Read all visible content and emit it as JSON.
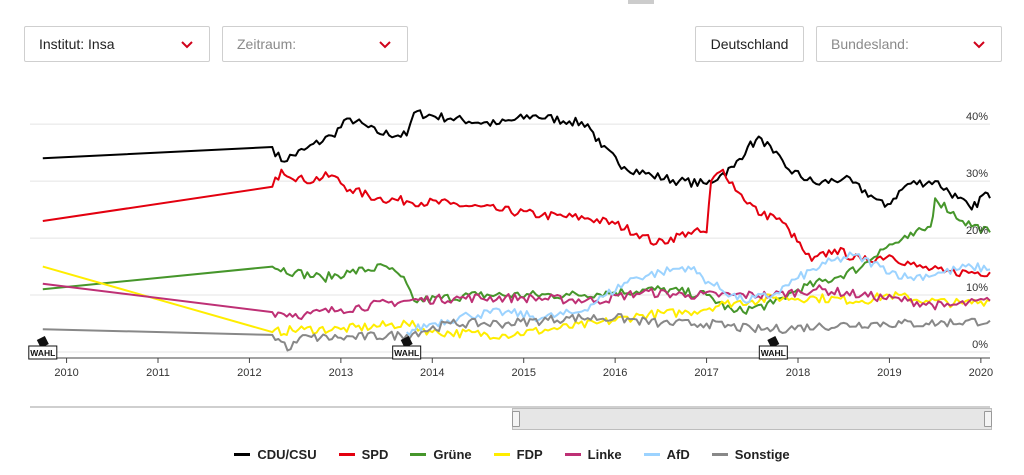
{
  "filters": {
    "institute_label": "Institut: Insa",
    "period_placeholder": "Zeitraum:",
    "country_button": "Deutschland",
    "state_placeholder": "Bundesland:"
  },
  "chart_data": {
    "type": "line",
    "x_axis": {
      "type": "year",
      "range": [
        2009.6,
        2020.1
      ],
      "ticks": [
        "2010",
        "2011",
        "2012",
        "2013",
        "2014",
        "2015",
        "2016",
        "2017",
        "2018",
        "2019",
        "2020"
      ]
    },
    "y_axis": {
      "range": [
        0,
        46
      ],
      "ticks": [
        "0%",
        "10%",
        "20%",
        "30%",
        "40%"
      ],
      "gridlines": true,
      "position": "right"
    },
    "election_markers": [
      {
        "label": "WAHL",
        "x": 2009.74
      },
      {
        "label": "WAHL",
        "x": 2013.72
      },
      {
        "label": "WAHL",
        "x": 2017.73
      }
    ],
    "series": [
      {
        "name": "CDU/CSU",
        "color": "#000000",
        "points": [
          [
            2009.74,
            34
          ],
          [
            2012.25,
            36
          ],
          [
            2012.35,
            33.5
          ],
          [
            2012.6,
            35.5
          ],
          [
            2012.9,
            38
          ],
          [
            2013.1,
            41
          ],
          [
            2013.4,
            38.5
          ],
          [
            2013.72,
            38
          ],
          [
            2013.8,
            42
          ],
          [
            2014.2,
            41
          ],
          [
            2014.7,
            40
          ],
          [
            2015.1,
            41.5
          ],
          [
            2015.5,
            40.5
          ],
          [
            2015.7,
            40
          ],
          [
            2015.85,
            36
          ],
          [
            2016.1,
            32.5
          ],
          [
            2016.4,
            31
          ],
          [
            2016.7,
            30
          ],
          [
            2017.0,
            29.5
          ],
          [
            2017.15,
            31
          ],
          [
            2017.3,
            32.5
          ],
          [
            2017.45,
            36
          ],
          [
            2017.6,
            37.5
          ],
          [
            2017.73,
            35
          ],
          [
            2017.9,
            32
          ],
          [
            2018.2,
            29.5
          ],
          [
            2018.5,
            30.5
          ],
          [
            2018.8,
            27.5
          ],
          [
            2018.95,
            25.5
          ],
          [
            2019.2,
            29.5
          ],
          [
            2019.5,
            30
          ],
          [
            2019.75,
            27
          ],
          [
            2019.9,
            25
          ],
          [
            2020.05,
            28
          ],
          [
            2020.1,
            27
          ]
        ]
      },
      {
        "name": "SPD",
        "color": "#e3000f",
        "points": [
          [
            2009.74,
            23
          ],
          [
            2012.25,
            29
          ],
          [
            2012.35,
            32
          ],
          [
            2012.6,
            30
          ],
          [
            2012.9,
            31
          ],
          [
            2013.1,
            28.5
          ],
          [
            2013.4,
            27
          ],
          [
            2013.72,
            26.5
          ],
          [
            2014.2,
            26
          ],
          [
            2014.7,
            25
          ],
          [
            2015.2,
            24
          ],
          [
            2015.7,
            23.5
          ],
          [
            2016.0,
            22.5
          ],
          [
            2016.3,
            20.5
          ],
          [
            2016.45,
            19
          ],
          [
            2016.8,
            21
          ],
          [
            2017.0,
            21
          ],
          [
            2017.05,
            30
          ],
          [
            2017.18,
            32
          ],
          [
            2017.35,
            28
          ],
          [
            2017.6,
            24
          ],
          [
            2017.73,
            24
          ],
          [
            2017.9,
            21.5
          ],
          [
            2018.05,
            18
          ],
          [
            2018.15,
            16
          ],
          [
            2018.4,
            18
          ],
          [
            2018.7,
            16
          ],
          [
            2019.0,
            17
          ],
          [
            2019.3,
            15
          ],
          [
            2019.6,
            14
          ],
          [
            2020.1,
            14
          ]
        ]
      },
      {
        "name": "Grüne",
        "color": "#46962b",
        "points": [
          [
            2009.74,
            11
          ],
          [
            2012.25,
            15
          ],
          [
            2012.5,
            14
          ],
          [
            2012.8,
            13
          ],
          [
            2013.1,
            14
          ],
          [
            2013.5,
            15
          ],
          [
            2013.72,
            12
          ],
          [
            2013.8,
            9
          ],
          [
            2014.5,
            10
          ],
          [
            2015.5,
            10
          ],
          [
            2016.0,
            10.5
          ],
          [
            2016.5,
            11
          ],
          [
            2017.0,
            10
          ],
          [
            2017.3,
            7
          ],
          [
            2017.73,
            8.5
          ],
          [
            2018.0,
            11
          ],
          [
            2018.4,
            13
          ],
          [
            2018.7,
            15
          ],
          [
            2018.9,
            18
          ],
          [
            2019.2,
            20
          ],
          [
            2019.45,
            22
          ],
          [
            2019.5,
            27
          ],
          [
            2019.8,
            23
          ],
          [
            2020.1,
            21
          ]
        ]
      },
      {
        "name": "FDP",
        "color": "#ffed00",
        "points": [
          [
            2009.74,
            15
          ],
          [
            2012.25,
            3.5
          ],
          [
            2012.6,
            4
          ],
          [
            2013.0,
            4
          ],
          [
            2013.72,
            5
          ],
          [
            2014.0,
            3.5
          ],
          [
            2014.8,
            3
          ],
          [
            2015.3,
            4
          ],
          [
            2015.8,
            5
          ],
          [
            2016.3,
            6.5
          ],
          [
            2016.8,
            7
          ],
          [
            2017.2,
            8.5
          ],
          [
            2017.5,
            9
          ],
          [
            2017.73,
            9.5
          ],
          [
            2018.2,
            9.5
          ],
          [
            2018.7,
            9
          ],
          [
            2019.0,
            10
          ],
          [
            2019.4,
            9
          ],
          [
            2019.8,
            8.5
          ],
          [
            2020.1,
            9
          ]
        ]
      },
      {
        "name": "Linke",
        "color": "#be3075",
        "points": [
          [
            2009.74,
            12
          ],
          [
            2012.25,
            7
          ],
          [
            2012.6,
            6.5
          ],
          [
            2013.0,
            7.5
          ],
          [
            2013.72,
            9
          ],
          [
            2014.3,
            9.5
          ],
          [
            2015.0,
            9.5
          ],
          [
            2015.8,
            9
          ],
          [
            2016.3,
            10.5
          ],
          [
            2016.8,
            10
          ],
          [
            2017.3,
            10
          ],
          [
            2017.73,
            10
          ],
          [
            2018.2,
            11
          ],
          [
            2018.7,
            10
          ],
          [
            2019.2,
            9
          ],
          [
            2019.6,
            8
          ],
          [
            2020.1,
            9
          ]
        ]
      },
      {
        "name": "AfD",
        "color": "#9cd3ff",
        "points": [
          [
            2013.72,
            3.5
          ],
          [
            2014.0,
            5
          ],
          [
            2014.4,
            6.5
          ],
          [
            2014.8,
            7
          ],
          [
            2015.2,
            6
          ],
          [
            2015.6,
            7
          ],
          [
            2015.9,
            10
          ],
          [
            2016.2,
            13
          ],
          [
            2016.5,
            14
          ],
          [
            2016.8,
            15
          ],
          [
            2017.05,
            12
          ],
          [
            2017.4,
            9
          ],
          [
            2017.73,
            10
          ],
          [
            2018.0,
            13
          ],
          [
            2018.3,
            15.5
          ],
          [
            2018.6,
            17
          ],
          [
            2018.9,
            15
          ],
          [
            2019.2,
            13
          ],
          [
            2019.6,
            14
          ],
          [
            2019.9,
            15
          ],
          [
            2020.1,
            14.5
          ]
        ]
      },
      {
        "name": "Sonstige",
        "color": "#888888",
        "points": [
          [
            2009.74,
            4
          ],
          [
            2012.25,
            3
          ],
          [
            2012.45,
            0.5
          ],
          [
            2012.55,
            2.5
          ],
          [
            2013.0,
            2.5
          ],
          [
            2013.72,
            3
          ],
          [
            2014.2,
            5
          ],
          [
            2014.8,
            5
          ],
          [
            2015.5,
            6
          ],
          [
            2016.0,
            6
          ],
          [
            2016.5,
            5
          ],
          [
            2017.0,
            5
          ],
          [
            2017.5,
            4
          ],
          [
            2017.73,
            4
          ],
          [
            2018.2,
            4.5
          ],
          [
            2018.8,
            5
          ],
          [
            2019.4,
            5
          ],
          [
            2020.1,
            5.5
          ]
        ]
      }
    ]
  }
}
